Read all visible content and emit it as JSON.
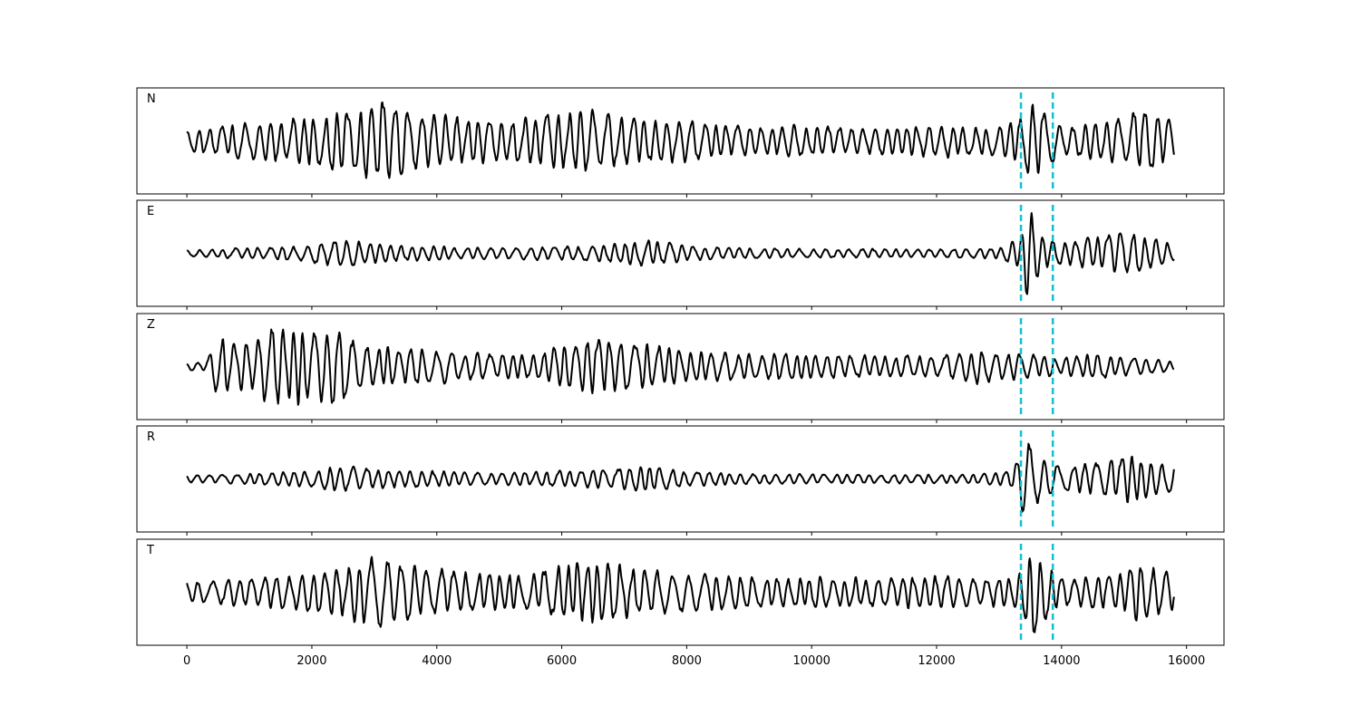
{
  "chart_data": {
    "type": "line",
    "x_range": [
      0,
      15800
    ],
    "xlim": [
      -800,
      16600
    ],
    "x_ticks": [
      0,
      2000,
      4000,
      6000,
      8000,
      10000,
      12000,
      14000,
      16000
    ],
    "x_tick_labels": [
      "0",
      "2000",
      "4000",
      "6000",
      "8000",
      "10000",
      "12000",
      "14000",
      "16000"
    ],
    "grid": false,
    "line_color": "#000000",
    "marker_color": "#17becf",
    "vertical_markers": [
      13350,
      13860
    ],
    "panels": [
      {
        "label": "N",
        "ylim": [
          -1.15,
          1.15
        ],
        "seed": 11,
        "envelope": [
          [
            0,
            0.28
          ],
          [
            1000,
            0.42
          ],
          [
            2000,
            0.55
          ],
          [
            3100,
            0.95
          ],
          [
            4000,
            0.6
          ],
          [
            5000,
            0.45
          ],
          [
            6500,
            0.75
          ],
          [
            7000,
            0.55
          ],
          [
            8000,
            0.45
          ],
          [
            9000,
            0.35
          ],
          [
            10000,
            0.35
          ],
          [
            11000,
            0.3
          ],
          [
            12000,
            0.38
          ],
          [
            12800,
            0.3
          ],
          [
            13300,
            0.45
          ],
          [
            13550,
            1.0
          ],
          [
            13800,
            0.6
          ],
          [
            14000,
            0.3
          ],
          [
            15000,
            0.55
          ],
          [
            15200,
            0.75
          ],
          [
            15800,
            0.5
          ]
        ]
      },
      {
        "label": "E",
        "ylim": [
          -1.15,
          1.15
        ],
        "seed": 23,
        "envelope": [
          [
            0,
            0.08
          ],
          [
            1000,
            0.12
          ],
          [
            2000,
            0.2
          ],
          [
            2400,
            0.32
          ],
          [
            3500,
            0.18
          ],
          [
            5000,
            0.12
          ],
          [
            6500,
            0.18
          ],
          [
            7400,
            0.3
          ],
          [
            8000,
            0.17
          ],
          [
            9000,
            0.12
          ],
          [
            10000,
            0.1
          ],
          [
            12000,
            0.1
          ],
          [
            13000,
            0.12
          ],
          [
            13350,
            0.4
          ],
          [
            13450,
            1.05
          ],
          [
            13700,
            0.4
          ],
          [
            14000,
            0.25
          ],
          [
            14500,
            0.35
          ],
          [
            14900,
            0.55
          ],
          [
            15200,
            0.45
          ],
          [
            15800,
            0.2
          ]
        ]
      },
      {
        "label": "Z",
        "ylim": [
          -1.15,
          1.15
        ],
        "seed": 37,
        "envelope": [
          [
            0,
            0.1
          ],
          [
            300,
            0.1
          ],
          [
            450,
            0.65
          ],
          [
            1000,
            0.5
          ],
          [
            1350,
            0.95
          ],
          [
            2000,
            0.8
          ],
          [
            2300,
            0.95
          ],
          [
            2800,
            0.5
          ],
          [
            3500,
            0.4
          ],
          [
            4500,
            0.35
          ],
          [
            5500,
            0.25
          ],
          [
            6500,
            0.7
          ],
          [
            7000,
            0.55
          ],
          [
            7500,
            0.5
          ],
          [
            8000,
            0.35
          ],
          [
            9000,
            0.3
          ],
          [
            10000,
            0.3
          ],
          [
            11000,
            0.25
          ],
          [
            12000,
            0.25
          ],
          [
            12700,
            0.42
          ],
          [
            13000,
            0.3
          ],
          [
            13400,
            0.3
          ],
          [
            14000,
            0.2
          ],
          [
            14500,
            0.3
          ],
          [
            15000,
            0.22
          ],
          [
            15800,
            0.12
          ]
        ]
      },
      {
        "label": "R",
        "ylim": [
          -1.15,
          1.15
        ],
        "seed": 51,
        "envelope": [
          [
            0,
            0.08
          ],
          [
            1000,
            0.12
          ],
          [
            2000,
            0.2
          ],
          [
            2400,
            0.3
          ],
          [
            3500,
            0.2
          ],
          [
            5000,
            0.14
          ],
          [
            6500,
            0.2
          ],
          [
            7400,
            0.3
          ],
          [
            8000,
            0.18
          ],
          [
            9000,
            0.12
          ],
          [
            11000,
            0.1
          ],
          [
            12500,
            0.1
          ],
          [
            13200,
            0.18
          ],
          [
            13420,
            1.05
          ],
          [
            13650,
            0.5
          ],
          [
            14000,
            0.3
          ],
          [
            14500,
            0.35
          ],
          [
            14900,
            0.45
          ],
          [
            15100,
            0.55
          ],
          [
            15800,
            0.3
          ]
        ]
      },
      {
        "label": "T",
        "ylim": [
          -1.15,
          1.15
        ],
        "seed": 67,
        "envelope": [
          [
            0,
            0.25
          ],
          [
            1000,
            0.32
          ],
          [
            2000,
            0.45
          ],
          [
            2400,
            0.55
          ],
          [
            3100,
            0.9
          ],
          [
            3600,
            0.6
          ],
          [
            4500,
            0.45
          ],
          [
            5500,
            0.42
          ],
          [
            6500,
            0.75
          ],
          [
            7000,
            0.6
          ],
          [
            7800,
            0.45
          ],
          [
            8500,
            0.4
          ],
          [
            9500,
            0.35
          ],
          [
            11000,
            0.35
          ],
          [
            12000,
            0.38
          ],
          [
            12800,
            0.3
          ],
          [
            13300,
            0.4
          ],
          [
            13550,
            1.05
          ],
          [
            13800,
            0.6
          ],
          [
            14000,
            0.3
          ],
          [
            15000,
            0.45
          ],
          [
            15200,
            0.75
          ],
          [
            15800,
            0.4
          ]
        ]
      }
    ]
  }
}
